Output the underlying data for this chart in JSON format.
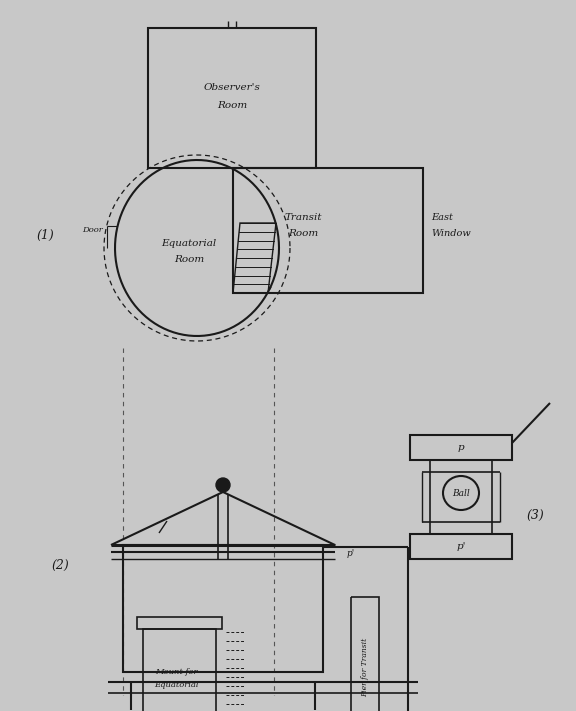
{
  "bg_color": "#c8c8c8",
  "line_color": "#1a1a1a",
  "fig_width": 5.76,
  "fig_height": 7.11,
  "label_1": "(1)",
  "label_2": "(2)",
  "label_3": "(3)"
}
